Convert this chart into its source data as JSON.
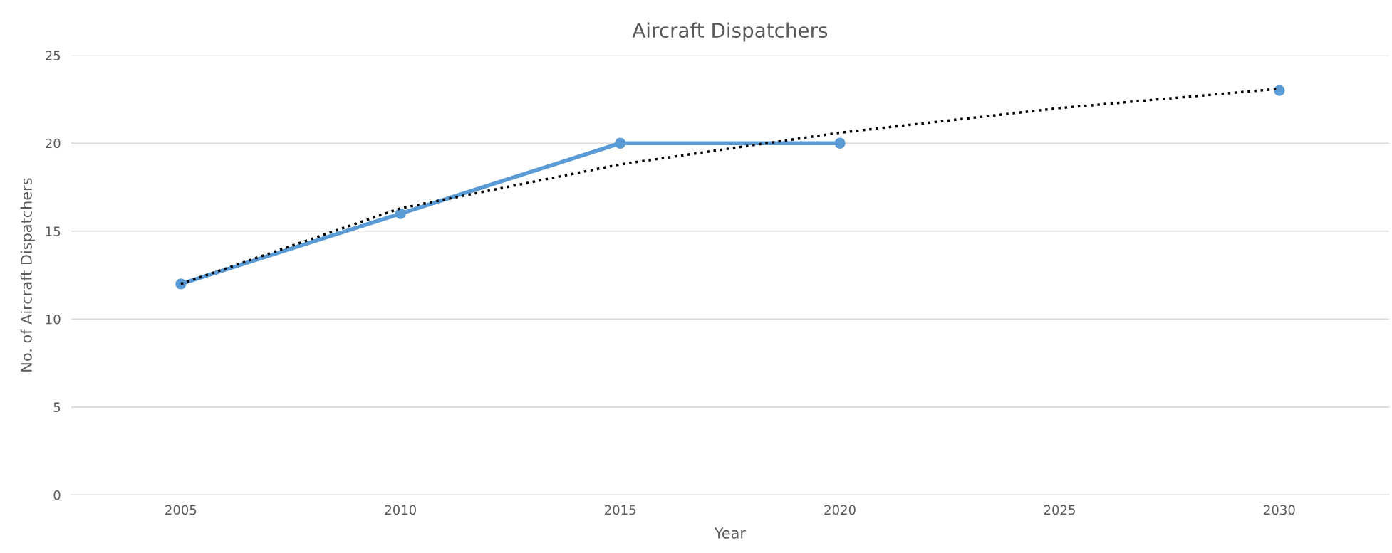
{
  "chart_data": {
    "type": "line",
    "title": "Aircraft Dispatchers",
    "xlabel": "Year",
    "ylabel": "No. of Aircraft Dispatchers",
    "categories": [
      "2005",
      "2010",
      "2015",
      "2020",
      "2025",
      "2030"
    ],
    "series": [
      {
        "color": "#5b9bd5",
        "values": [
          12,
          16,
          20,
          20,
          null,
          23
        ],
        "marker": "circle",
        "line_style": "solid"
      },
      {
        "type": "line",
        "color": "#000000",
        "values": [
          12,
          16.3,
          18.8,
          20.6,
          22,
          23.1
        ],
        "marker": "none",
        "line_style": "dotted"
      }
    ],
    "ylim": [
      0,
      25
    ],
    "yticks": [
      0,
      5,
      10,
      15,
      20,
      25
    ],
    "grid": "y",
    "legend": false
  }
}
